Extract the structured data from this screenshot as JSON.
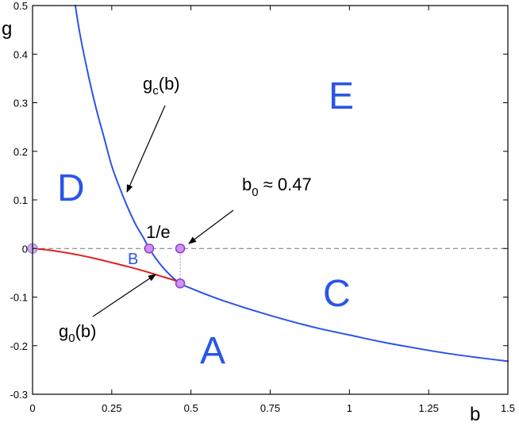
{
  "chart_data": {
    "type": "line",
    "xlabel": "b",
    "ylabel": "g",
    "xlim": [
      0,
      1.5
    ],
    "ylim": [
      -0.3,
      0.5
    ],
    "xticks": [
      "0",
      "0.25",
      "0.5",
      "0.75",
      "1",
      "1.25",
      "1.5"
    ],
    "yticks": [
      "0.5",
      "0.4",
      "0.3",
      "0.2",
      "0.1",
      "0",
      "-0.1",
      "-0.2",
      "-0.3"
    ],
    "grid": false,
    "series": [
      {
        "name": "g_c(b)",
        "color": "#2a55e8",
        "x": [
          0.135,
          0.15,
          0.175,
          0.2,
          0.225,
          0.25,
          0.275,
          0.3,
          0.325,
          0.35,
          0.3679,
          0.4,
          0.43,
          0.466,
          0.5,
          0.55,
          0.6,
          0.7,
          0.8,
          0.9,
          1.0,
          1.1,
          1.2,
          1.3,
          1.4,
          1.5
        ],
        "y": [
          0.5,
          0.44,
          0.36,
          0.29,
          0.23,
          0.17,
          0.125,
          0.085,
          0.05,
          0.022,
          0.0,
          -0.03,
          -0.052,
          -0.072,
          -0.082,
          -0.095,
          -0.107,
          -0.128,
          -0.147,
          -0.164,
          -0.178,
          -0.192,
          -0.204,
          -0.215,
          -0.224,
          -0.232
        ]
      },
      {
        "name": "g_0(b)",
        "color": "#e02020",
        "x": [
          0.0,
          0.05,
          0.1,
          0.15,
          0.2,
          0.25,
          0.3,
          0.35,
          0.4,
          0.45,
          0.466
        ],
        "y": [
          0.0,
          -0.003,
          -0.008,
          -0.014,
          -0.021,
          -0.029,
          -0.037,
          -0.046,
          -0.056,
          -0.066,
          -0.072
        ]
      }
    ],
    "reference_line": {
      "y": 0,
      "style": "dashed",
      "color": "#777777"
    },
    "special_points": [
      {
        "x": 0.0,
        "y": 0.0
      },
      {
        "x": 0.3679,
        "y": 0.0
      },
      {
        "x": 0.466,
        "y": 0.0
      },
      {
        "x": 0.466,
        "y": -0.072
      }
    ],
    "regions": [
      {
        "label": "A",
        "x": 0.57,
        "y": -0.235,
        "size": "large"
      },
      {
        "label": "B",
        "x": 0.325,
        "y": -0.02,
        "size": "small"
      },
      {
        "label": "C",
        "x": 0.96,
        "y": -0.085,
        "size": "large"
      },
      {
        "label": "D",
        "x": 0.115,
        "y": 0.11,
        "size": "large"
      },
      {
        "label": "E",
        "x": 0.98,
        "y": 0.3,
        "size": "large"
      }
    ],
    "annotations": [
      {
        "main": "g",
        "sub": "c",
        "tail": "(b)"
      },
      {
        "main": "g",
        "sub": "0",
        "tail": "(b)"
      },
      {
        "main": "b",
        "sub": "0",
        "tail": " ≈ 0.47"
      },
      {
        "text": "1/e"
      }
    ]
  }
}
